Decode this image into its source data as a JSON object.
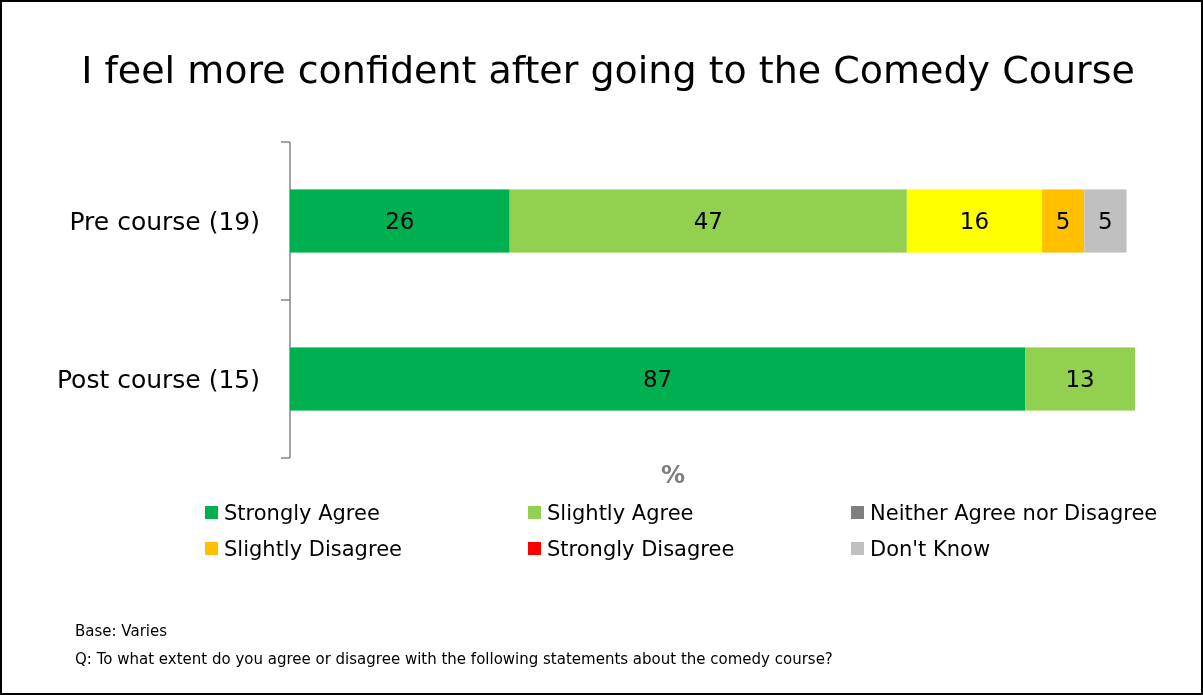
{
  "chart_data": {
    "type": "bar",
    "orientation": "horizontal",
    "stacked": true,
    "title": "I feel more confident after going to the Comedy Course",
    "xlabel": "%",
    "categories": [
      "Pre course (19)",
      "Post course (15)"
    ],
    "series": [
      {
        "name": "Strongly Agree",
        "color": "#00b050",
        "values": [
          26,
          87
        ]
      },
      {
        "name": "Slightly Agree",
        "color": "#92d050",
        "values": [
          47,
          13
        ]
      },
      {
        "color": "#ffff00",
        "values": [
          16,
          null
        ]
      },
      {
        "name": "Neither Agree nor Disagree",
        "color": "#7f7f7f",
        "values": [
          null,
          null
        ]
      },
      {
        "name": "Slightly Disagree",
        "color": "#ffc000",
        "values": [
          5,
          null
        ]
      },
      {
        "name": "Strongly Disagree",
        "color": "#ff0000",
        "values": [
          null,
          null
        ]
      },
      {
        "name": "Don't Know",
        "color": "#c0c0c0",
        "values": [
          5,
          null
        ]
      }
    ],
    "xlim": [
      0,
      100
    ],
    "tick_labels": "y",
    "data_labels": true,
    "legend": "bottom",
    "annotations": [
      "Base: Varies",
      "Q: To what extent do you agree or disagree with the following statements about the comedy course?"
    ]
  }
}
